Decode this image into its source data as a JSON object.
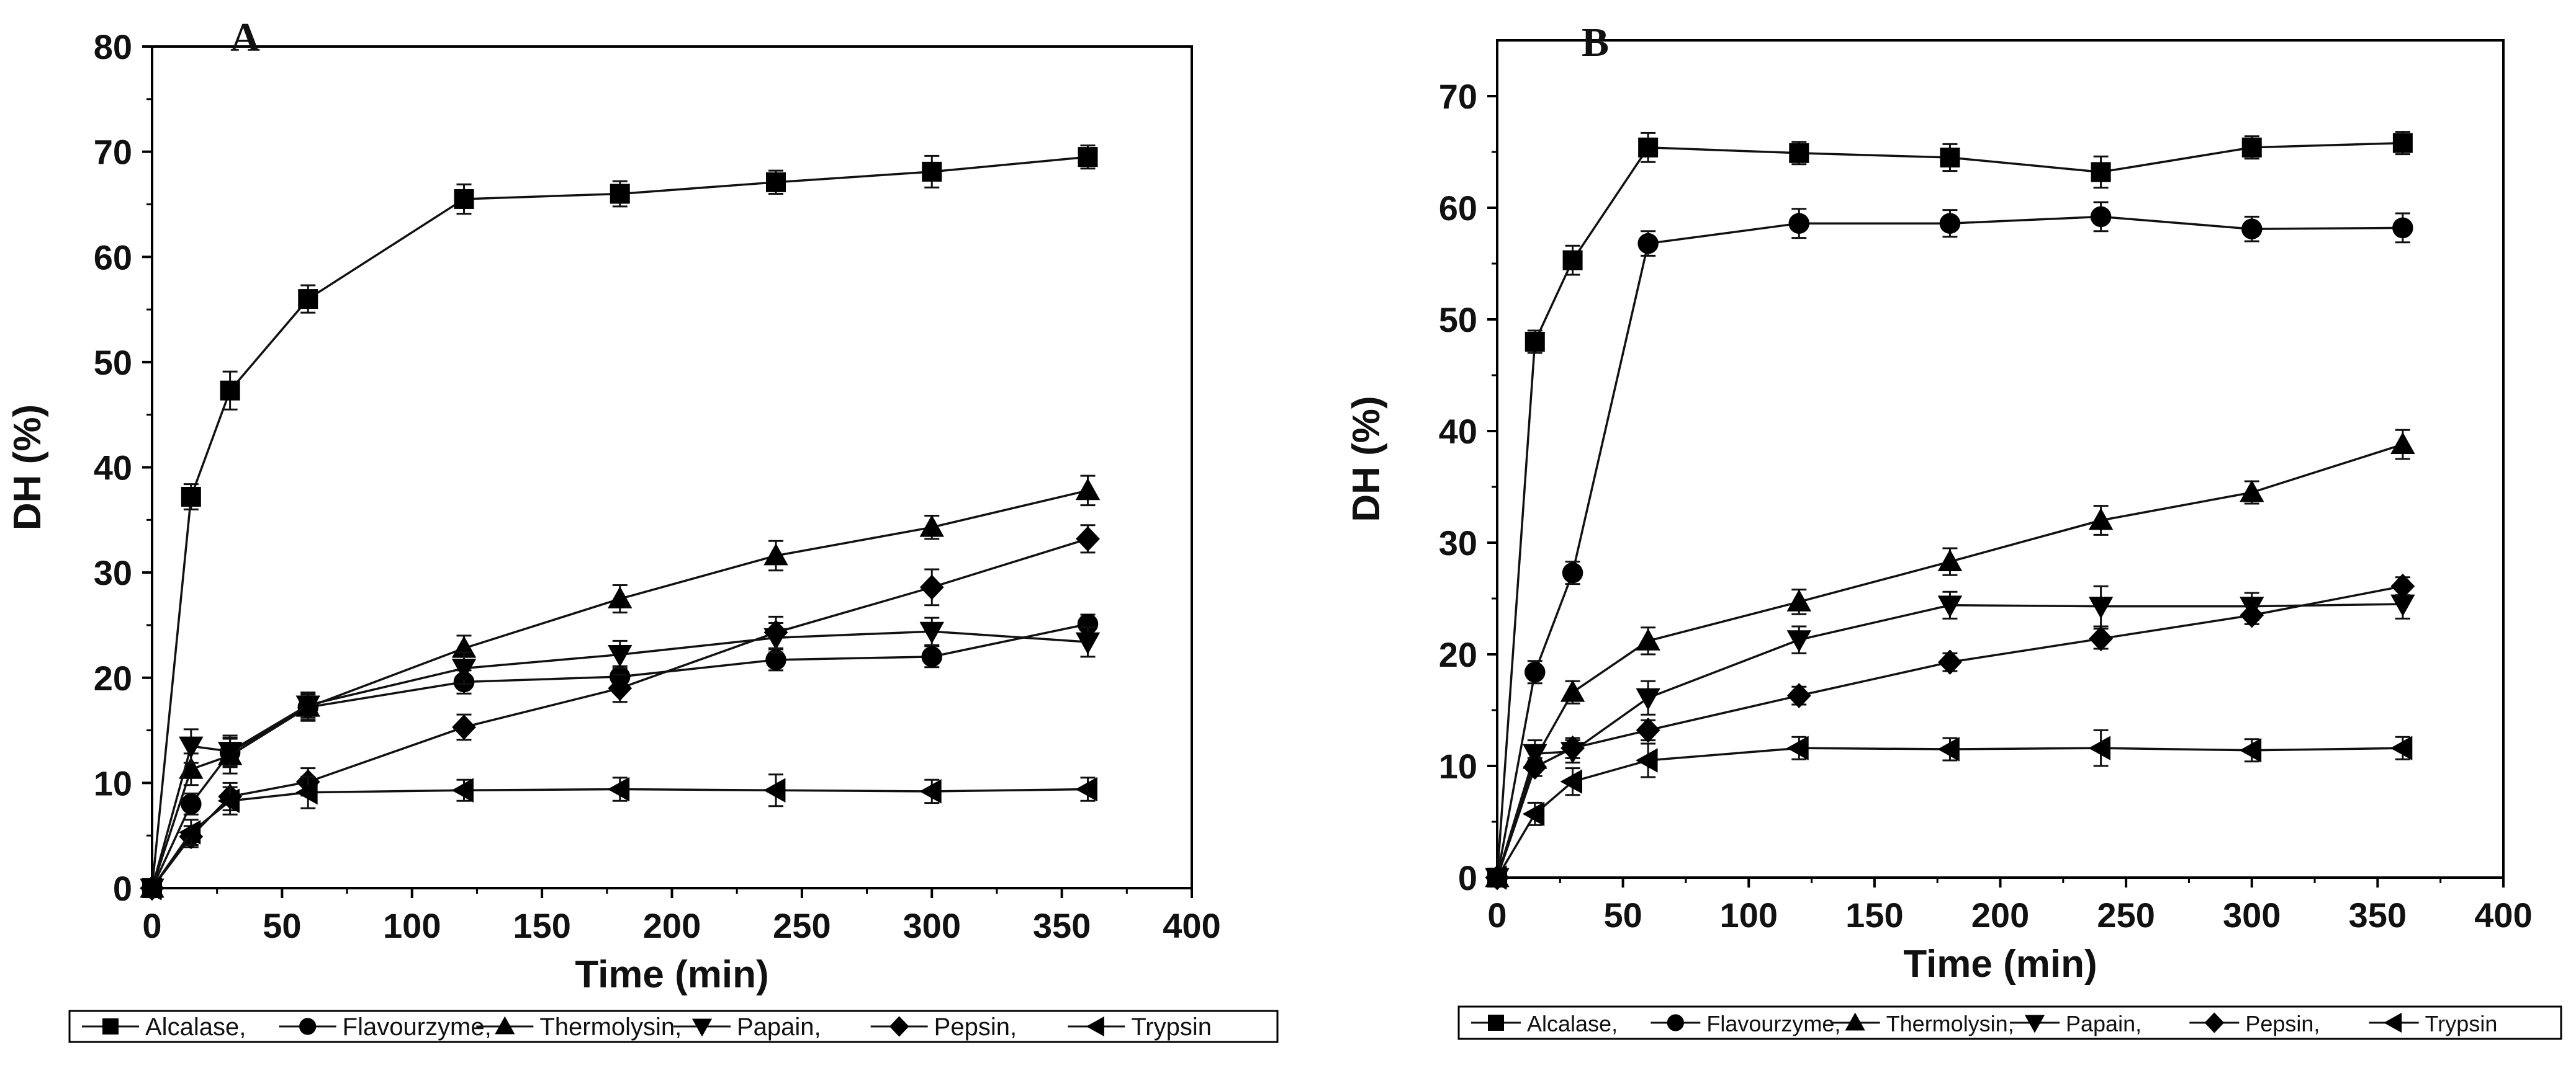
{
  "legend": {
    "entries": [
      "Alcalase,",
      "Flavourzyme,",
      "Thermolysin,",
      "Papain,",
      "Pepsin,",
      "Trypsin"
    ],
    "markers": [
      "square",
      "circle",
      "triangle-up",
      "triangle-down",
      "diamond",
      "triangle-left"
    ]
  },
  "chart_data": [
    {
      "type": "line",
      "panel": "A",
      "xlabel": "Time (min)",
      "ylabel": "DH (%)",
      "xlim": [
        0,
        400
      ],
      "ylim": [
        0,
        80
      ],
      "xticks": [
        0,
        50,
        100,
        150,
        200,
        250,
        300,
        350,
        400
      ],
      "yticks": [
        0,
        10,
        20,
        30,
        40,
        50,
        60,
        70,
        80
      ],
      "x": [
        0,
        15,
        30,
        60,
        120,
        180,
        240,
        300,
        360
      ],
      "series": [
        {
          "name": "Alcalase",
          "marker": "square",
          "values": [
            0,
            37.2,
            47.3,
            56.0,
            65.5,
            66.0,
            67.1,
            68.1,
            69.5
          ],
          "errors": [
            0,
            1.2,
            1.8,
            1.3,
            1.4,
            1.2,
            1.1,
            1.5,
            1.1
          ]
        },
        {
          "name": "Flavourzyme",
          "marker": "circle",
          "values": [
            0,
            8.0,
            12.9,
            17.2,
            19.6,
            20.1,
            21.7,
            22.0,
            25.1
          ],
          "errors": [
            0,
            1.0,
            1.3,
            1.2,
            1.1,
            1.0,
            1.0,
            1.0,
            0.9
          ]
        },
        {
          "name": "Thermolysin",
          "marker": "triangle-up",
          "values": [
            0,
            11.3,
            12.6,
            17.2,
            22.8,
            27.5,
            31.6,
            34.3,
            37.8
          ],
          "errors": [
            0,
            1.5,
            1.7,
            1.3,
            1.2,
            1.3,
            1.4,
            1.1,
            1.4
          ]
        },
        {
          "name": "Papain",
          "marker": "triangle-down",
          "values": [
            0,
            13.5,
            13.0,
            17.4,
            20.9,
            22.2,
            23.8,
            24.4,
            23.4
          ],
          "errors": [
            0,
            1.6,
            1.5,
            1.2,
            1.5,
            1.3,
            1.4,
            1.3,
            1.4
          ]
        },
        {
          "name": "Pepsin",
          "marker": "diamond",
          "values": [
            0,
            4.9,
            8.7,
            10.1,
            15.3,
            19.0,
            24.3,
            28.6,
            33.2
          ],
          "errors": [
            0,
            1.0,
            1.3,
            1.3,
            1.2,
            1.3,
            1.5,
            1.7,
            1.3
          ]
        },
        {
          "name": "Trypsin",
          "marker": "triangle-left",
          "values": [
            0,
            5.3,
            8.3,
            9.1,
            9.3,
            9.4,
            9.3,
            9.2,
            9.4
          ],
          "errors": [
            0,
            1.2,
            1.3,
            1.5,
            1.0,
            1.1,
            1.5,
            1.1,
            1.1
          ]
        }
      ]
    },
    {
      "type": "line",
      "panel": "B",
      "xlabel": "Time (min)",
      "ylabel": "DH (%)",
      "xlim": [
        0,
        400
      ],
      "ylim": [
        0,
        75
      ],
      "xticks": [
        0,
        50,
        100,
        150,
        200,
        250,
        300,
        350,
        400
      ],
      "yticks": [
        0,
        10,
        20,
        30,
        40,
        50,
        60,
        70
      ],
      "x": [
        0,
        15,
        30,
        60,
        120,
        180,
        240,
        300,
        360
      ],
      "series": [
        {
          "name": "Alcalase",
          "marker": "square",
          "values": [
            0,
            48.0,
            55.3,
            65.4,
            64.9,
            64.5,
            63.2,
            65.4,
            65.8
          ],
          "errors": [
            0,
            1.0,
            1.3,
            1.3,
            1.0,
            1.2,
            1.4,
            1.0,
            1.0
          ]
        },
        {
          "name": "Flavourzyme",
          "marker": "circle",
          "values": [
            0,
            18.4,
            27.3,
            56.8,
            58.6,
            58.6,
            59.2,
            58.1,
            58.2
          ],
          "errors": [
            0,
            1.0,
            1.0,
            1.1,
            1.3,
            1.2,
            1.3,
            1.1,
            1.3
          ]
        },
        {
          "name": "Thermolysin",
          "marker": "triangle-up",
          "values": [
            0,
            10.6,
            16.6,
            21.2,
            24.7,
            28.3,
            32.0,
            34.5,
            38.8
          ],
          "errors": [
            0,
            1.0,
            1.0,
            1.2,
            1.1,
            1.2,
            1.3,
            1.0,
            1.3
          ]
        },
        {
          "name": "Papain",
          "marker": "triangle-down",
          "values": [
            0,
            11.1,
            11.3,
            16.1,
            21.3,
            24.4,
            24.3,
            24.3,
            24.5
          ],
          "errors": [
            0,
            1.2,
            1.0,
            1.5,
            1.2,
            1.2,
            1.8,
            1.2,
            1.3
          ]
        },
        {
          "name": "Pepsin",
          "marker": "diamond",
          "values": [
            0,
            9.9,
            11.6,
            13.2,
            16.3,
            19.3,
            21.4,
            23.5,
            26.1
          ],
          "errors": [
            0,
            0.8,
            0.9,
            0.9,
            0.8,
            0.8,
            0.9,
            0.8,
            0.8
          ]
        },
        {
          "name": "Trypsin",
          "marker": "triangle-left",
          "values": [
            0,
            5.7,
            8.6,
            10.5,
            11.6,
            11.5,
            11.6,
            11.4,
            11.6
          ],
          "errors": [
            0,
            1.0,
            1.2,
            1.5,
            1.0,
            1.0,
            1.6,
            1.0,
            1.0
          ]
        }
      ]
    }
  ]
}
